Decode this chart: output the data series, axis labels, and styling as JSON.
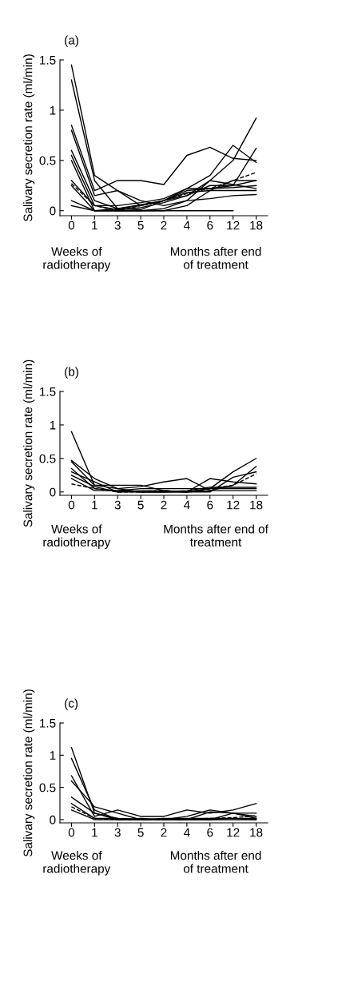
{
  "chart_data": [
    {
      "type": "line",
      "title": "(a)",
      "ylabel": "Salivary secretion rate (ml/min)",
      "categories": [
        "0",
        "1",
        "3",
        "5",
        "2",
        "4",
        "6",
        "12",
        "18"
      ],
      "ylim": [
        -0.05,
        1.5
      ],
      "yticks": [
        0,
        0.5,
        1,
        1.5
      ],
      "grid": false,
      "legend": false,
      "marker": "none",
      "annotations": [
        "Weeks of\nradiotherapy",
        "Months after end\nof treatment"
      ],
      "series": [
        {
          "color": "#000000",
          "values": [
            1.45,
            0.35,
            0.2,
            0.05,
            0.1,
            0.2,
            0.22,
            0.25,
            0.3
          ]
        },
        {
          "color": "#000000",
          "values": [
            1.3,
            0.3,
            0.02,
            0.01,
            0.1,
            0.22,
            0.35,
            0.65,
            0.48
          ]
        },
        {
          "color": "#000000",
          "values": [
            0.85,
            0.2,
            0.3,
            0.3,
            0.26,
            0.55,
            0.63,
            0.52,
            0.5
          ]
        },
        {
          "color": "#000000",
          "values": [
            0.8,
            0.15,
            0.2,
            0.1,
            0.05,
            0.1,
            0.3,
            0.26,
            0.22
          ]
        },
        {
          "color": "#000000",
          "values": [
            0.6,
            0.1,
            0.02,
            0.05,
            0.1,
            0.15,
            0.3,
            0.5,
            0.92
          ]
        },
        {
          "color": "#000000",
          "values": [
            0.55,
            0.05,
            0.01,
            0.03,
            0.08,
            0.15,
            0.25,
            0.25,
            0.62
          ]
        },
        {
          "color": "#000000",
          "values": [
            0.5,
            0.0,
            0.0,
            0.0,
            0.0,
            0.05,
            0.2,
            0.3,
            0.3
          ]
        },
        {
          "color": "#000000",
          "values": [
            0.3,
            0.05,
            0.05,
            0.08,
            0.12,
            0.22,
            0.22,
            0.23,
            0.25
          ]
        },
        {
          "color": "#000000",
          "values": [
            0.25,
            0.0,
            0.02,
            0.06,
            0.1,
            0.18,
            0.2,
            0.2,
            0.2
          ]
        },
        {
          "color": "#000000",
          "values": [
            0.1,
            0.0,
            0.0,
            0.0,
            0.02,
            0.1,
            0.12,
            0.15,
            0.16
          ]
        },
        {
          "color": "#000000",
          "values": [
            0.05,
            0.0,
            0.0,
            0.0,
            0.0,
            0.0,
            0.0,
            0.0,
            null
          ]
        },
        {
          "color": "#000000",
          "line_style": "dashed",
          "values": [
            0.27,
            0.05,
            0.0,
            0.05,
            0.1,
            0.17,
            0.22,
            0.3,
            0.38
          ]
        }
      ]
    },
    {
      "type": "line",
      "title": "(b)",
      "ylabel": "Salivary secretion rate (ml/min)",
      "categories": [
        "0",
        "1",
        "3",
        "5",
        "2",
        "4",
        "6",
        "12",
        "18"
      ],
      "ylim": [
        -0.05,
        1.5
      ],
      "yticks": [
        0,
        0.5,
        1,
        1.5
      ],
      "grid": false,
      "legend": false,
      "marker": "none",
      "annotations": [
        "Weeks of\nradiotherapy",
        "Months after end of\ntreatment"
      ],
      "series": [
        {
          "color": "#000000",
          "values": [
            0.9,
            0.1,
            0.05,
            0.0,
            0.0,
            0.0,
            0.05,
            0.3,
            0.5
          ]
        },
        {
          "color": "#000000",
          "values": [
            0.47,
            0.2,
            0.05,
            0.08,
            0.15,
            0.2,
            0.02,
            0.1,
            0.38
          ]
        },
        {
          "color": "#000000",
          "values": [
            0.45,
            0.1,
            0.1,
            0.1,
            0.02,
            0.0,
            0.2,
            0.15,
            0.12
          ]
        },
        {
          "color": "#000000",
          "values": [
            0.35,
            0.05,
            0.02,
            0.05,
            0.05,
            0.05,
            0.05,
            0.05,
            0.05
          ]
        },
        {
          "color": "#000000",
          "values": [
            0.3,
            0.15,
            0.0,
            0.0,
            0.0,
            0.02,
            0.07,
            0.07,
            0.07
          ]
        },
        {
          "color": "#000000",
          "values": [
            0.25,
            0.08,
            0.0,
            0.02,
            0.02,
            0.0,
            0.0,
            0.22,
            0.3
          ]
        },
        {
          "color": "#000000",
          "values": [
            0.2,
            0.02,
            0.02,
            0.0,
            0.0,
            0.0,
            0.02,
            0.02,
            0.02
          ]
        },
        {
          "color": "#000000",
          "line_style": "dashed",
          "values": [
            0.12,
            0.05,
            0.0,
            0.0,
            0.02,
            0.0,
            0.05,
            0.1,
            0.27
          ]
        }
      ]
    },
    {
      "type": "line",
      "title": "(c)",
      "ylabel": "Salivary secretion rate (ml/min)",
      "categories": [
        "0",
        "1",
        "3",
        "5",
        "2",
        "4",
        "6",
        "12",
        "18"
      ],
      "ylim": [
        -0.05,
        1.5
      ],
      "yticks": [
        0,
        0.5,
        1,
        1.5
      ],
      "grid": false,
      "legend": false,
      "marker": "none",
      "annotations": [
        "Weeks of\nradiotherapy",
        "Months after end\nof treatment"
      ],
      "series": [
        {
          "color": "#000000",
          "values": [
            1.12,
            0.1,
            0.02,
            0.0,
            0.02,
            0.02,
            0.02,
            0.02,
            0.02
          ]
        },
        {
          "color": "#000000",
          "values": [
            0.95,
            0.15,
            0.0,
            0.0,
            0.0,
            0.05,
            0.15,
            0.1,
            0.05
          ]
        },
        {
          "color": "#000000",
          "values": [
            0.68,
            0.05,
            0.15,
            0.05,
            0.05,
            0.15,
            0.1,
            0.15,
            0.25
          ]
        },
        {
          "color": "#000000",
          "values": [
            0.6,
            0.2,
            0.1,
            0.0,
            0.0,
            0.0,
            0.12,
            0.1,
            0.02
          ]
        },
        {
          "color": "#000000",
          "values": [
            0.35,
            0.1,
            0.0,
            0.02,
            0.0,
            0.0,
            0.0,
            0.1,
            0.1
          ]
        },
        {
          "color": "#000000",
          "values": [
            0.25,
            0.02,
            0.02,
            0.0,
            0.0,
            0.0,
            0.0,
            0.02,
            0.0
          ]
        },
        {
          "color": "#000000",
          "values": [
            0.15,
            0.0,
            0.0,
            0.0,
            0.0,
            0.0,
            0.0,
            0.0,
            0.0
          ]
        },
        {
          "color": "#000000",
          "line_style": "dashed",
          "values": [
            0.2,
            0.02,
            0.0,
            0.0,
            0.0,
            0.0,
            0.02,
            0.03,
            0.06
          ]
        }
      ]
    }
  ]
}
